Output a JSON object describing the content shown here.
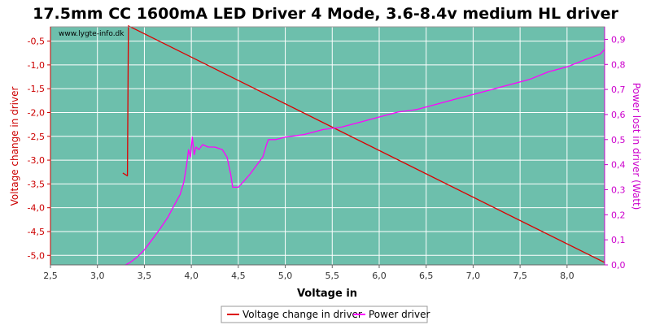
{
  "chart_data": {
    "type": "line",
    "title": "17.5mm CC 1600mA LED Driver 4 Mode, 3.6-8.4v medium HL driver",
    "watermark": "www.lygte-info.dk",
    "xlabel": "Voltage in",
    "ylabel_left": "Voltage change in driver",
    "ylabel_right": "Power lost in driver (Watt)",
    "xlim": [
      2.5,
      8.4
    ],
    "ylim_left": [
      -5.2,
      -0.2
    ],
    "ylim_right": [
      0.0,
      0.95
    ],
    "x_ticks": [
      "2,5",
      "3,0",
      "3,5",
      "4,0",
      "4,5",
      "5,0",
      "5,5",
      "6,0",
      "6,5",
      "7,0",
      "7,5",
      "8,0"
    ],
    "x_tick_values": [
      2.5,
      3.0,
      3.5,
      4.0,
      4.5,
      5.0,
      5.5,
      6.0,
      6.5,
      7.0,
      7.5,
      8.0
    ],
    "left_ticks": [
      "-0,5",
      "-1,0",
      "-1,5",
      "-2,0",
      "-2,5",
      "-3,0",
      "-3,5",
      "-4,0",
      "-4,5",
      "-5,0"
    ],
    "left_tick_values": [
      -0.5,
      -1.0,
      -1.5,
      -2.0,
      -2.5,
      -3.0,
      -3.5,
      -4.0,
      -4.5,
      -5.0
    ],
    "right_ticks": [
      "0,9",
      "0,8",
      "0,7",
      "0,6",
      "0,5",
      "0,4",
      "0,3",
      "0,2",
      "0,1",
      "0,0"
    ],
    "right_tick_values": [
      0.9,
      0.8,
      0.7,
      0.6,
      0.5,
      0.4,
      0.3,
      0.2,
      0.1,
      0.0
    ],
    "grid": true,
    "legend_position": "bottom-center",
    "colors": {
      "plot_bg": "#6dbfac",
      "grid": "#ffffff",
      "left_axis": "#cc0000",
      "right_axis": "#cc00cc",
      "series_voltage": "#dd0000",
      "series_power": "#ff00ff"
    },
    "series": [
      {
        "name": "Voltage change in driver",
        "axis": "left",
        "color": "#dd0000",
        "x": [
          3.27,
          3.32,
          3.32,
          3.33,
          8.4
        ],
        "y": [
          -3.27,
          -3.33,
          -3.3,
          -0.18,
          -5.15
        ]
      },
      {
        "name": "Power driver",
        "axis": "right",
        "color": "#ff00ff",
        "x": [
          3.3,
          3.35,
          3.42,
          3.5,
          3.58,
          3.66,
          3.75,
          3.82,
          3.88,
          3.92,
          3.95,
          3.97,
          3.99,
          4.01,
          4.03,
          4.05,
          4.08,
          4.12,
          4.18,
          4.25,
          4.33,
          4.38,
          4.42,
          4.44,
          4.46,
          4.5,
          4.55,
          4.62,
          4.7,
          4.76,
          4.8,
          4.82,
          4.9,
          5.0,
          5.2,
          5.4,
          5.6,
          5.8,
          6.0,
          6.2,
          6.4,
          6.6,
          6.8,
          7.0,
          7.2,
          7.4,
          7.6,
          7.8,
          8.0,
          8.2,
          8.35,
          8.4
        ],
        "y": [
          0.0,
          0.01,
          0.03,
          0.06,
          0.1,
          0.14,
          0.19,
          0.24,
          0.28,
          0.33,
          0.4,
          0.46,
          0.43,
          0.51,
          0.44,
          0.47,
          0.46,
          0.48,
          0.47,
          0.47,
          0.46,
          0.43,
          0.36,
          0.31,
          0.31,
          0.31,
          0.33,
          0.36,
          0.4,
          0.43,
          0.48,
          0.5,
          0.5,
          0.51,
          0.52,
          0.54,
          0.55,
          0.57,
          0.59,
          0.61,
          0.62,
          0.64,
          0.66,
          0.68,
          0.7,
          0.72,
          0.74,
          0.77,
          0.79,
          0.82,
          0.84,
          0.86
        ]
      }
    ]
  }
}
